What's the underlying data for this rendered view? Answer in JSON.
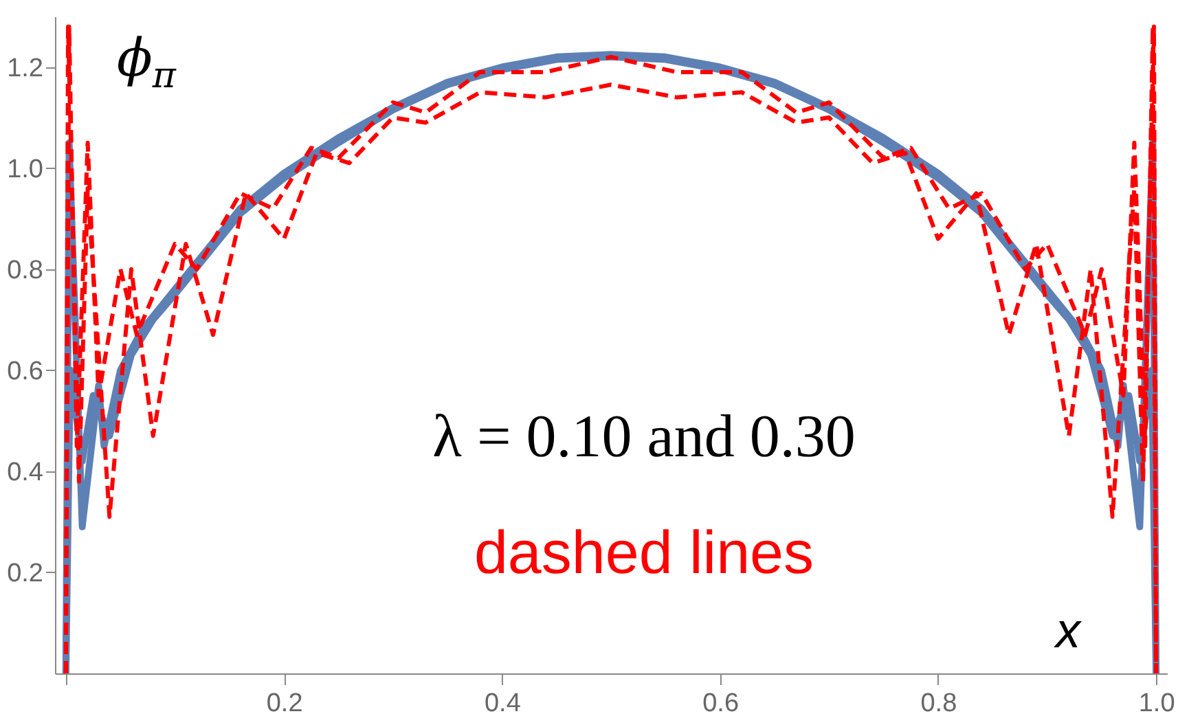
{
  "chart_data": {
    "type": "line",
    "xlabel": "x",
    "ylabel": "ϕ$_{π}$",
    "annotations": [
      "λ = 0.10 and 0.30",
      "dashed lines"
    ],
    "xlim": [
      -0.01,
      1.01
    ],
    "ylim": [
      0,
      1.3
    ],
    "xticks": [
      {
        "value": 0,
        "label": null
      },
      0.2,
      0.4,
      0.6,
      0.8,
      {
        "value": 1,
        "label": "1.0"
      }
    ],
    "yticks": [
      0.2,
      0.4,
      0.6,
      0.8,
      {
        "value": 1,
        "label": "1.0"
      },
      1.2
    ],
    "series": [
      {
        "color": "#5e81b5",
        "line_style": "solid",
        "x": [
          0,
          0.003,
          0.015,
          0.03,
          0.035,
          0.05,
          0.07,
          0.1,
          0.13,
          0.16,
          0.2,
          0.25,
          0.3,
          0.35,
          0.4,
          0.45,
          0.5,
          0.55,
          0.6,
          0.65,
          0.7,
          0.75,
          0.8,
          0.84,
          0.87,
          0.9,
          0.93,
          0.95,
          0.965,
          0.97,
          0.985,
          0.997,
          1
        ],
        "values": [
          0,
          1.05,
          0.29,
          0.57,
          0.45,
          0.6,
          0.68,
          0.76,
          0.84,
          0.92,
          0.99,
          1.06,
          1.12,
          1.17,
          1.2,
          1.22,
          1.225,
          1.22,
          1.2,
          1.17,
          1.12,
          1.06,
          0.99,
          0.92,
          0.84,
          0.76,
          0.68,
          0.6,
          0.45,
          0.57,
          0.29,
          1.05,
          0
        ]
      },
      {
        "color": "#5e81b5",
        "line_style": "solid",
        "x": [
          0,
          0.004,
          0.015,
          0.025,
          0.04,
          0.06,
          0.08,
          0.1,
          0.13,
          0.16,
          0.2,
          0.25,
          0.3,
          0.35,
          0.4,
          0.45,
          0.5,
          0.55,
          0.6,
          0.65,
          0.7,
          0.75,
          0.8,
          0.84,
          0.87,
          0.9,
          0.92,
          0.94,
          0.96,
          0.975,
          0.985,
          0.996,
          1
        ],
        "values": [
          0,
          0.6,
          0.42,
          0.55,
          0.47,
          0.63,
          0.7,
          0.75,
          0.83,
          0.91,
          0.98,
          1.05,
          1.115,
          1.165,
          1.195,
          1.215,
          1.22,
          1.215,
          1.195,
          1.165,
          1.115,
          1.05,
          0.98,
          0.91,
          0.83,
          0.75,
          0.7,
          0.63,
          0.47,
          0.55,
          0.42,
          0.6,
          0
        ]
      },
      {
        "color": "#ff0000",
        "line_style": "dashed",
        "x": [
          0,
          0.003,
          0.01,
          0.02,
          0.03,
          0.05,
          0.065,
          0.1,
          0.12,
          0.16,
          0.19,
          0.225,
          0.25,
          0.3,
          0.33,
          0.38,
          0.44,
          0.5,
          0.56,
          0.62,
          0.67,
          0.7,
          0.75,
          0.775,
          0.81,
          0.84,
          0.88,
          0.9,
          0.935,
          0.95,
          0.97,
          0.98,
          0.99,
          0.997,
          1
        ],
        "values": [
          0,
          1.28,
          0.45,
          1.05,
          0.55,
          0.8,
          0.67,
          0.85,
          0.8,
          0.95,
          0.92,
          1.04,
          1.02,
          1.13,
          1.11,
          1.19,
          1.19,
          1.22,
          1.19,
          1.19,
          1.11,
          1.13,
          1.02,
          1.04,
          0.92,
          0.95,
          0.8,
          0.85,
          0.67,
          0.8,
          0.55,
          1.05,
          0.45,
          1.28,
          0
        ]
      },
      {
        "color": "#ff0000",
        "line_style": "dashed",
        "x": [
          0,
          0.002,
          0.012,
          0.02,
          0.04,
          0.06,
          0.08,
          0.11,
          0.135,
          0.165,
          0.2,
          0.23,
          0.26,
          0.3,
          0.33,
          0.38,
          0.44,
          0.5,
          0.56,
          0.62,
          0.67,
          0.7,
          0.74,
          0.77,
          0.8,
          0.835,
          0.865,
          0.89,
          0.92,
          0.94,
          0.96,
          0.98,
          0.988,
          0.998,
          1
        ],
        "values": [
          0,
          1.28,
          0.38,
          0.96,
          0.31,
          0.8,
          0.47,
          0.85,
          0.67,
          0.95,
          0.86,
          1.03,
          1.01,
          1.1,
          1.09,
          1.15,
          1.14,
          1.165,
          1.14,
          1.15,
          1.09,
          1.1,
          1.01,
          1.03,
          0.86,
          0.95,
          0.67,
          0.85,
          0.47,
          0.8,
          0.31,
          0.96,
          0.38,
          1.28,
          0
        ]
      }
    ]
  }
}
